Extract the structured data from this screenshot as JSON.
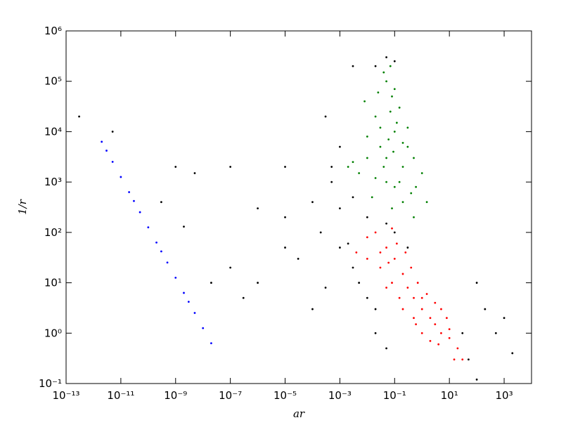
{
  "chart_data": {
    "type": "scatter",
    "xlabel": "ar",
    "ylabel": "1/r",
    "xscale": "log",
    "yscale": "log",
    "xlim": [
      1e-13,
      10000.0
    ],
    "ylim": [
      0.1,
      1000000.0
    ],
    "xticks": [
      {
        "value": 1e-13,
        "label": "10⁻¹³"
      },
      {
        "value": 1e-11,
        "label": "10⁻¹¹"
      },
      {
        "value": 1e-09,
        "label": "10⁻⁹"
      },
      {
        "value": 1e-07,
        "label": "10⁻⁷"
      },
      {
        "value": 1e-05,
        "label": "10⁻⁵"
      },
      {
        "value": 0.001,
        "label": "10⁻³"
      },
      {
        "value": 0.1,
        "label": "10⁻¹"
      },
      {
        "value": 10,
        "label": "10¹"
      },
      {
        "value": 1000,
        "label": "10³"
      }
    ],
    "yticks": [
      {
        "value": 0.1,
        "label": "10⁻¹"
      },
      {
        "value": 1,
        "label": "10⁰"
      },
      {
        "value": 10,
        "label": "10¹"
      },
      {
        "value": 100,
        "label": "10²"
      },
      {
        "value": 1000,
        "label": "10³"
      },
      {
        "value": 10000,
        "label": "10⁴"
      },
      {
        "value": 100000,
        "label": "10⁵"
      },
      {
        "value": 1000000,
        "label": "10⁶"
      }
    ],
    "series": [
      {
        "color": "#000000",
        "x": [
          0.05,
          0.02,
          0.1,
          0.003,
          0.001,
          0.0005,
          0.0001,
          1e-05,
          1e-06,
          1e-07,
          1e-06,
          3e-07,
          3e-05,
          0.0002,
          0.001,
          0.003,
          0.01,
          0.02,
          0.005,
          0.0003,
          0.0001,
          0.001,
          0.003,
          0.0005,
          0.01,
          0.05,
          0.1,
          0.02,
          0.05,
          100,
          200,
          500,
          1000,
          2000,
          50,
          100,
          30,
          1e-05,
          1e-07,
          5e-09,
          1e-09,
          3e-10,
          2e-09,
          5e-12,
          3e-13,
          2e-08,
          1e-05,
          0.0003,
          0.002,
          0.3
        ],
        "values": [
          300000,
          200000,
          250000,
          200000,
          5000,
          1000,
          400,
          200,
          300,
          20,
          10,
          5,
          30,
          100,
          50,
          20,
          5,
          3,
          10,
          8,
          3,
          300,
          500,
          2000,
          200,
          150,
          100,
          1,
          0.5,
          10,
          3,
          1,
          2,
          0.4,
          0.3,
          0.12,
          1,
          2000,
          2000,
          1500,
          2000,
          400,
          130,
          10000,
          20000,
          10,
          50,
          20000,
          60,
          50
        ]
      },
      {
        "color": "#008000",
        "x": [
          0.05,
          0.1,
          0.02,
          0.05,
          0.08,
          0.03,
          0.2,
          0.1,
          0.05,
          0.01,
          0.3,
          0.5,
          0.003,
          0.005,
          0.15,
          0.04,
          0.07,
          0.02,
          0.6,
          1,
          0.2,
          0.08,
          0.01,
          0.12,
          0.025,
          0.06,
          0.3,
          0.008,
          0.15,
          0.4,
          0.04,
          0.09,
          0.2,
          0.03,
          0.07,
          1.5,
          0.5,
          0.002,
          0.015,
          0.1
        ],
        "values": [
          3000,
          10000,
          20000,
          100000,
          50000,
          5000,
          2000,
          800,
          1000,
          8000,
          5000,
          3000,
          2500,
          1500,
          30000,
          150000,
          200000,
          1200,
          800,
          1500,
          400,
          300,
          3000,
          15000,
          60000,
          7000,
          12000,
          40000,
          1000,
          600,
          2000,
          4000,
          6000,
          12000,
          25000,
          400,
          200,
          2000,
          500,
          70000
        ]
      },
      {
        "color": "#ff0000",
        "x": [
          0.01,
          0.02,
          0.05,
          0.03,
          0.1,
          0.08,
          0.2,
          0.3,
          0.5,
          1,
          2,
          3,
          5,
          10,
          20,
          0.15,
          0.4,
          0.7,
          1.5,
          3,
          0.05,
          0.2,
          0.5,
          1,
          2,
          8,
          10,
          15,
          0.03,
          0.06,
          0.12,
          0.25,
          0.6,
          4,
          30,
          0.01,
          0.004,
          0.08,
          1,
          5
        ],
        "values": [
          80,
          100,
          50,
          20,
          30,
          10,
          15,
          8,
          5,
          3,
          2,
          1.5,
          1,
          0.8,
          0.5,
          5,
          20,
          10,
          6,
          4,
          8,
          3,
          2,
          1,
          0.7,
          2,
          1.2,
          0.3,
          40,
          25,
          60,
          40,
          1.5,
          0.6,
          0.3,
          30,
          40,
          120,
          5,
          3
        ]
      },
      {
        "color": "#0000ff",
        "x": [
          2e-12,
          3e-12,
          5e-12,
          1e-11,
          2e-11,
          3e-11,
          5e-11,
          1e-10,
          2e-10,
          3e-10,
          5e-10,
          1e-09,
          2e-09,
          3e-09,
          5e-09,
          1e-08,
          2e-08
        ],
        "values": [
          6300,
          4200,
          2520,
          1260,
          630,
          420,
          252,
          126,
          63,
          42,
          25.2,
          12.6,
          6.3,
          4.2,
          2.52,
          1.26,
          0.63
        ]
      }
    ]
  }
}
